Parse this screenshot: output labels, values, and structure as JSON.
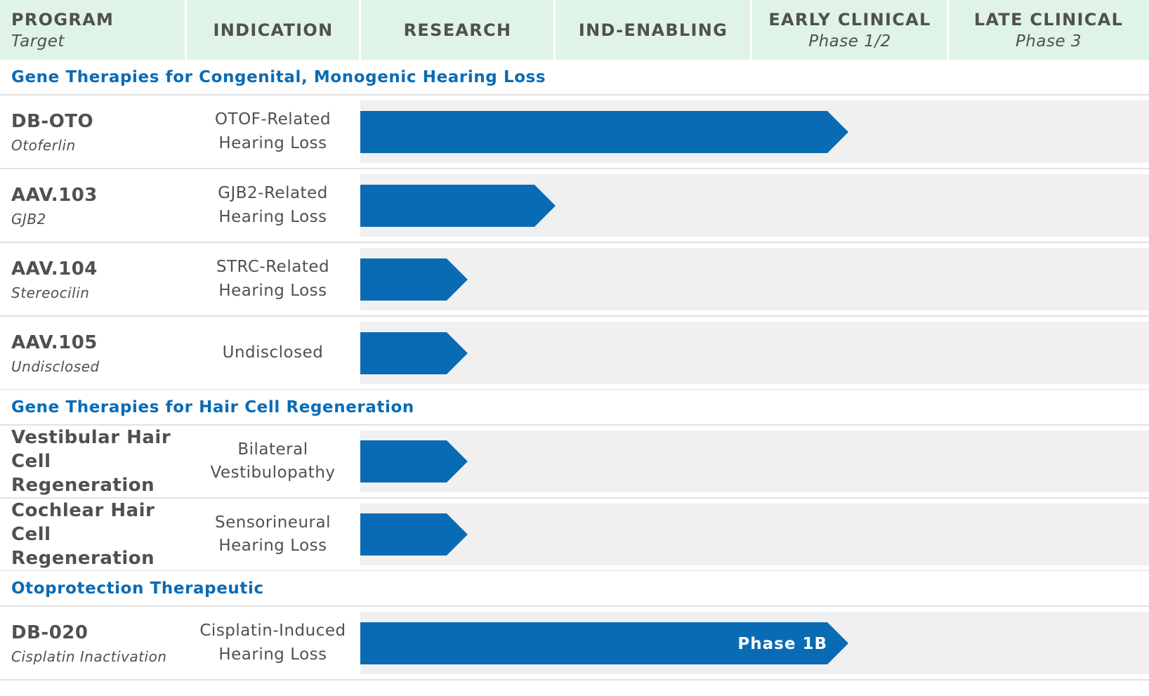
{
  "chart_data": {
    "type": "pipeline",
    "columns": [
      {
        "title": "PROGRAM",
        "subtitle": "Target"
      },
      {
        "title": "INDICATION",
        "subtitle": ""
      },
      {
        "title": "RESEARCH",
        "subtitle": ""
      },
      {
        "title": "IND-ENABLING",
        "subtitle": ""
      },
      {
        "title": "EARLY CLINICAL",
        "subtitle": "Phase 1/2"
      },
      {
        "title": "LATE CLINICAL",
        "subtitle": "Phase 3"
      }
    ],
    "stages": [
      "RESEARCH",
      "IND-ENABLING",
      "EARLY CLINICAL",
      "LATE CLINICAL"
    ],
    "sections": [
      {
        "title": "Gene Therapies for Congenital, Monogenic Hearing Loss",
        "programs": [
          {
            "name": "DB-OTO",
            "target": "Otoferlin",
            "indication": "OTOF-Related Hearing Loss",
            "progress_stages": 2.5,
            "bar_label": ""
          },
          {
            "name": "AAV.103",
            "target": "GJB2",
            "indication": "GJB2-Related Hearing Loss",
            "progress_stages": 1.0,
            "bar_label": ""
          },
          {
            "name": "AAV.104",
            "target": "Stereocilin",
            "indication": "STRC-Related Hearing Loss",
            "progress_stages": 0.55,
            "bar_label": ""
          },
          {
            "name": "AAV.105",
            "target": "Undisclosed",
            "indication": "Undisclosed",
            "progress_stages": 0.55,
            "bar_label": ""
          }
        ]
      },
      {
        "title": "Gene Therapies for Hair Cell Regeneration",
        "programs": [
          {
            "name": "Vestibular Hair Cell Regeneration",
            "target": "",
            "indication": "Bilateral Vestibulopathy",
            "progress_stages": 0.55,
            "bar_label": ""
          },
          {
            "name": "Cochlear Hair Cell Regeneration",
            "target": "",
            "indication": "Sensorineural Hearing Loss",
            "progress_stages": 0.55,
            "bar_label": ""
          }
        ]
      },
      {
        "title": "Otoprotection Therapeutic",
        "programs": [
          {
            "name": "DB-020",
            "target": "Cisplatin Inactivation",
            "indication": "Cisplatin-Induced Hearing Loss",
            "progress_stages": 2.5,
            "bar_label": "Phase 1B"
          }
        ]
      }
    ],
    "colors": {
      "bar": "#0a6bb5",
      "header_bg": "#e0f3e8",
      "track_bg": "#f0f0f0",
      "section_title": "#0a6bb5",
      "bar_text": "#ffffff"
    }
  }
}
